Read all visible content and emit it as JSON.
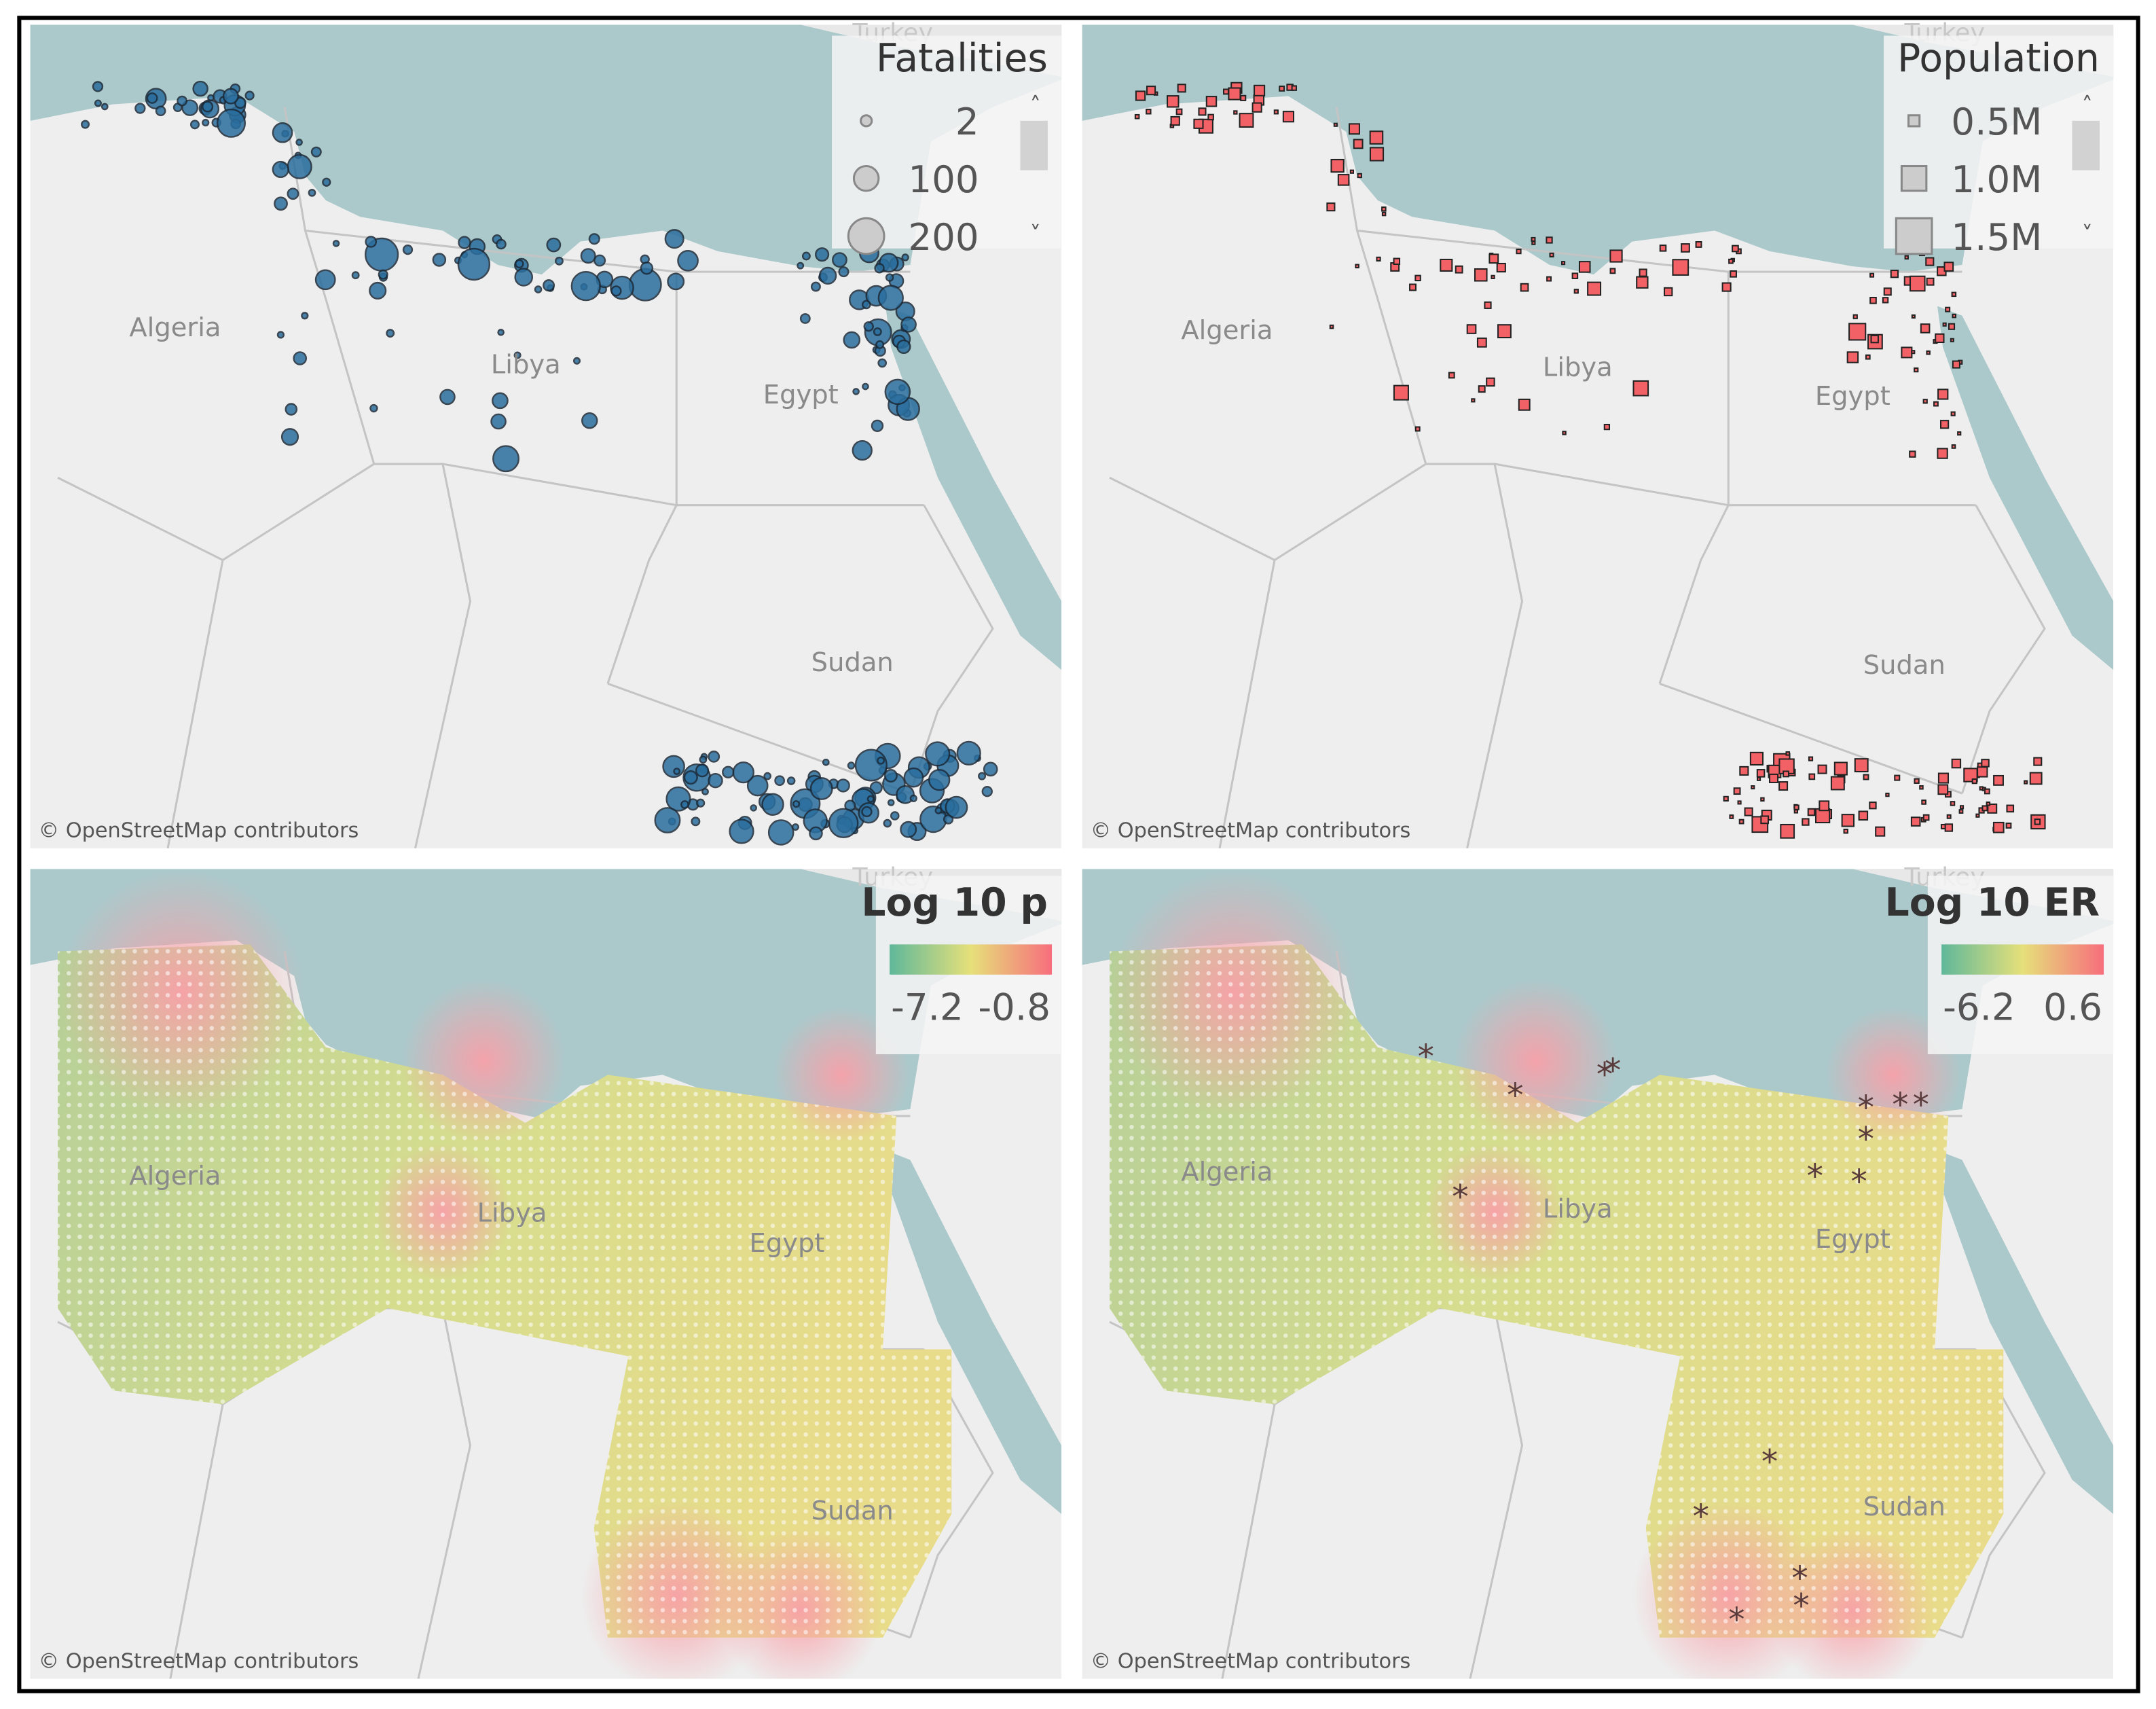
{
  "panels": [
    {
      "legend": {
        "title": "Fatalities",
        "items": [
          "2",
          "100",
          "200"
        ]
      },
      "watermark": "Turkey",
      "countries": [
        "Algeria",
        "Libya",
        "Egypt",
        "Sudan"
      ],
      "attribution": "© OpenStreetMap contributors"
    },
    {
      "legend": {
        "title": "Population",
        "items": [
          "0.5M",
          "1.0M",
          "1.5M"
        ]
      },
      "watermark": "Turkey",
      "countries": [
        "Algeria",
        "Libya",
        "Egypt",
        "Sudan"
      ],
      "attribution": "© OpenStreetMap contributors"
    },
    {
      "legend": {
        "title": "Log 10 p",
        "items": [
          "-7.2",
          "-0.8"
        ]
      },
      "watermark": "Turkey",
      "countries": [
        "Algeria",
        "Libya",
        "Egypt",
        "Sudan"
      ],
      "attribution": "© OpenStreetMap contributors"
    },
    {
      "legend": {
        "title": "Log 10 ER",
        "items": [
          "-6.2",
          "0.6"
        ]
      },
      "watermark": "Turkey",
      "countries": [
        "Algeria",
        "Libya",
        "Egypt",
        "Sudan"
      ],
      "attribution": "© OpenStreetMap contributors"
    }
  ]
}
